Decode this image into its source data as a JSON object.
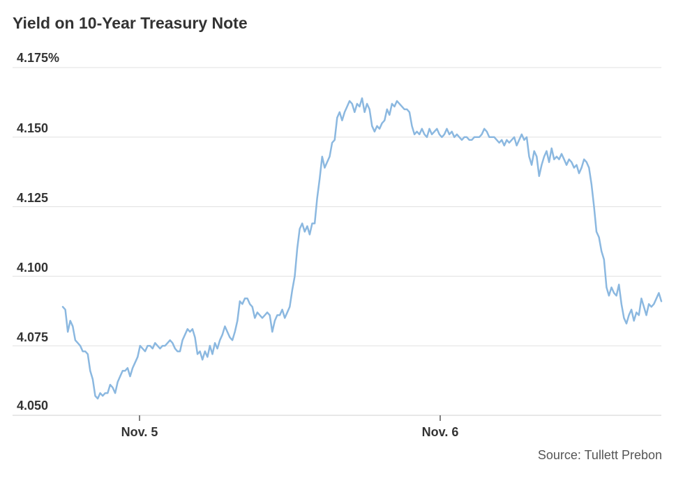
{
  "chart_data": {
    "type": "line",
    "title": "Yield on 10-Year Treasury Note",
    "source": "Source: Tullett Prebon",
    "y_ticks": [
      "4.175%",
      "4.150",
      "4.125",
      "4.100",
      "4.075",
      "4.050"
    ],
    "x_ticks": [
      "Nov. 5",
      "Nov. 6"
    ],
    "ylim": [
      4.05,
      4.175
    ],
    "grid": true,
    "line_color": "#8bb8e0",
    "series": [
      {
        "values": [
          4.089,
          4.088,
          4.08,
          4.084,
          4.082,
          4.077,
          4.076,
          4.075,
          4.073,
          4.073,
          4.072,
          4.066,
          4.063,
          4.057,
          4.056,
          4.058,
          4.057,
          4.058,
          4.058,
          4.061,
          4.06,
          4.058,
          4.062,
          4.064,
          4.066,
          4.066,
          4.067,
          4.064,
          4.067,
          4.069,
          4.071,
          4.075,
          4.074,
          4.073,
          4.075,
          4.075,
          4.074,
          4.076,
          4.075,
          4.074,
          4.075,
          4.075,
          4.076,
          4.077,
          4.076,
          4.074,
          4.073,
          4.073,
          4.077,
          4.079,
          4.081,
          4.08,
          4.081,
          4.078,
          4.072,
          4.073,
          4.07,
          4.073,
          4.071,
          4.075,
          4.072,
          4.076,
          4.074,
          4.077,
          4.079,
          4.082,
          4.08,
          4.078,
          4.077,
          4.08,
          4.084,
          4.091,
          4.09,
          4.092,
          4.092,
          4.09,
          4.089,
          4.085,
          4.087,
          4.086,
          4.085,
          4.086,
          4.087,
          4.086,
          4.08,
          4.084,
          4.086,
          4.086,
          4.088,
          4.085,
          4.087,
          4.089,
          4.095,
          4.1,
          4.11,
          4.117,
          4.119,
          4.116,
          4.118,
          4.115,
          4.119,
          4.119,
          4.128,
          4.135,
          4.143,
          4.139,
          4.141,
          4.143,
          4.148,
          4.149,
          4.157,
          4.159,
          4.156,
          4.159,
          4.161,
          4.163,
          4.162,
          4.159,
          4.162,
          4.161,
          4.164,
          4.159,
          4.162,
          4.16,
          4.154,
          4.152,
          4.154,
          4.153,
          4.155,
          4.156,
          4.16,
          4.158,
          4.162,
          4.161,
          4.163,
          4.162,
          4.161,
          4.16,
          4.16,
          4.159,
          4.154,
          4.151,
          4.152,
          4.151,
          4.153,
          4.151,
          4.15,
          4.153,
          4.151,
          4.152,
          4.153,
          4.151,
          4.15,
          4.151,
          4.153,
          4.151,
          4.152,
          4.15,
          4.151,
          4.15,
          4.149,
          4.15,
          4.15,
          4.149,
          4.149,
          4.15,
          4.15,
          4.15,
          4.151,
          4.153,
          4.152,
          4.15,
          4.15,
          4.15,
          4.149,
          4.148,
          4.149,
          4.147,
          4.149,
          4.148,
          4.149,
          4.15,
          4.147,
          4.149,
          4.151,
          4.149,
          4.15,
          4.143,
          4.14,
          4.145,
          4.143,
          4.136,
          4.14,
          4.143,
          4.145,
          4.141,
          4.146,
          4.142,
          4.143,
          4.142,
          4.144,
          4.142,
          4.14,
          4.142,
          4.141,
          4.139,
          4.14,
          4.137,
          4.139,
          4.142,
          4.141,
          4.139,
          4.133,
          4.125,
          4.116,
          4.114,
          4.109,
          4.106,
          4.096,
          4.093,
          4.096,
          4.094,
          4.093,
          4.097,
          4.09,
          4.085,
          4.083,
          4.086,
          4.088,
          4.084,
          4.087,
          4.086,
          4.092,
          4.089,
          4.086,
          4.09,
          4.089,
          4.09,
          4.092,
          4.094,
          4.091
        ]
      }
    ]
  }
}
